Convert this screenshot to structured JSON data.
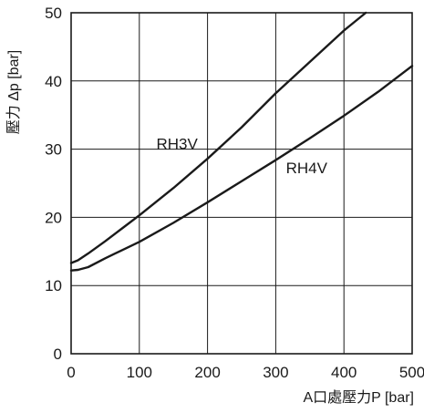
{
  "chart_data": {
    "type": "line",
    "title": "",
    "xlabel": "A口處壓力P [bar]",
    "ylabel": "壓力 Δp [bar]",
    "xlim": [
      0,
      500
    ],
    "ylim": [
      0,
      50
    ],
    "x_ticks": [
      0,
      100,
      200,
      300,
      400,
      500
    ],
    "y_ticks": [
      0,
      10,
      20,
      30,
      40,
      50
    ],
    "grid": true,
    "legend": "none",
    "line_color": "#1a1a1a",
    "grid_color": "#1a1a1a",
    "series": [
      {
        "name": "RH3V",
        "x": [
          0,
          10,
          25,
          50,
          75,
          100,
          150,
          200,
          250,
          300,
          350,
          400,
          432
        ],
        "y": [
          13.3,
          13.7,
          14.7,
          16.5,
          18.4,
          20.3,
          24.3,
          28.6,
          33.2,
          38.2,
          42.8,
          47.4,
          50
        ]
      },
      {
        "name": "RH4V",
        "x": [
          0,
          10,
          25,
          50,
          75,
          100,
          150,
          200,
          250,
          300,
          350,
          400,
          450,
          500
        ],
        "y": [
          12.2,
          12.3,
          12.7,
          14.0,
          15.2,
          16.4,
          19.2,
          22.2,
          25.3,
          28.4,
          31.6,
          34.9,
          38.4,
          42.2
        ]
      }
    ]
  }
}
